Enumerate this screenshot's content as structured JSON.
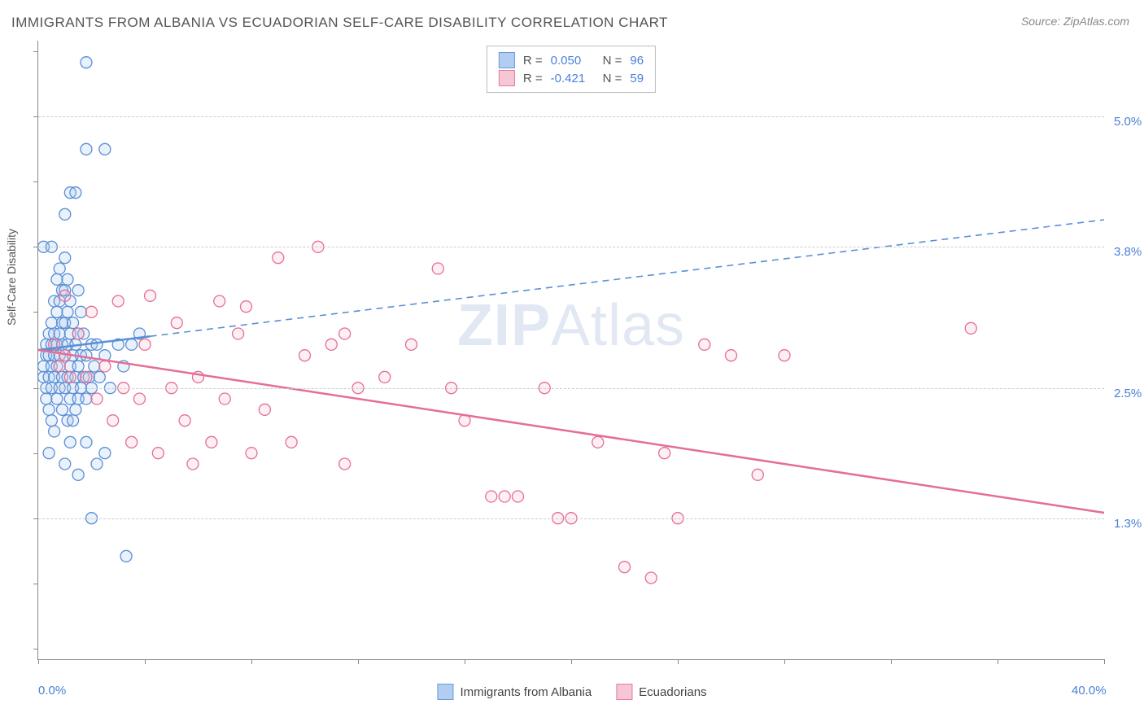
{
  "title": "IMMIGRANTS FROM ALBANIA VS ECUADORIAN SELF-CARE DISABILITY CORRELATION CHART",
  "source": "Source: ZipAtlas.com",
  "watermark": {
    "bold": "ZIP",
    "light": "Atlas"
  },
  "chart": {
    "type": "scatter-correlation",
    "ylabel": "Self-Care Disability",
    "xlim": [
      0.0,
      40.0
    ],
    "ylim": [
      0.0,
      5.7
    ],
    "x_axis_labels": [
      {
        "value": 0.0,
        "text": "0.0%"
      },
      {
        "value": 40.0,
        "text": "40.0%"
      }
    ],
    "y_gridlines": [
      {
        "value": 1.3,
        "text": "1.3%"
      },
      {
        "value": 2.5,
        "text": "2.5%"
      },
      {
        "value": 3.8,
        "text": "3.8%"
      },
      {
        "value": 5.0,
        "text": "5.0%"
      }
    ],
    "x_ticks": [
      0,
      4,
      8,
      12,
      16,
      20,
      24,
      28,
      32,
      36,
      40
    ],
    "y_ticks": [
      0.1,
      0.7,
      1.3,
      1.9,
      2.5,
      3.2,
      3.8,
      4.4,
      5.0,
      5.6
    ],
    "background_color": "#ffffff",
    "grid_color": "#cccccc",
    "marker_radius": 7,
    "marker_stroke_width": 1.3,
    "marker_fill_opacity": 0.25,
    "series": [
      {
        "name": "Immigrants from Albania",
        "color_stroke": "#5a8fd6",
        "color_fill": "#a9c9ef",
        "R": "0.050",
        "N": "96",
        "trend": {
          "x1": 0,
          "y1": 2.85,
          "x2": 40,
          "y2": 4.05,
          "solid_until_x": 4.2
        },
        "points": [
          [
            0.2,
            2.6
          ],
          [
            0.2,
            2.7
          ],
          [
            0.3,
            2.8
          ],
          [
            0.3,
            2.9
          ],
          [
            0.3,
            2.5
          ],
          [
            0.3,
            2.4
          ],
          [
            0.4,
            3.0
          ],
          [
            0.4,
            2.8
          ],
          [
            0.4,
            2.6
          ],
          [
            0.4,
            2.3
          ],
          [
            0.5,
            3.1
          ],
          [
            0.5,
            2.9
          ],
          [
            0.5,
            2.7
          ],
          [
            0.5,
            2.5
          ],
          [
            0.5,
            2.2
          ],
          [
            0.6,
            3.3
          ],
          [
            0.6,
            3.0
          ],
          [
            0.6,
            2.8
          ],
          [
            0.6,
            2.6
          ],
          [
            0.6,
            2.1
          ],
          [
            0.7,
            3.5
          ],
          [
            0.7,
            3.2
          ],
          [
            0.7,
            2.9
          ],
          [
            0.7,
            2.7
          ],
          [
            0.7,
            2.4
          ],
          [
            0.8,
            3.6
          ],
          [
            0.8,
            3.3
          ],
          [
            0.8,
            3.0
          ],
          [
            0.8,
            2.8
          ],
          [
            0.8,
            2.5
          ],
          [
            0.9,
            3.4
          ],
          [
            0.9,
            3.1
          ],
          [
            0.9,
            2.9
          ],
          [
            0.9,
            2.6
          ],
          [
            0.9,
            2.3
          ],
          [
            1.0,
            3.7
          ],
          [
            1.0,
            3.4
          ],
          [
            1.0,
            3.1
          ],
          [
            1.0,
            2.8
          ],
          [
            1.0,
            2.5
          ],
          [
            1.1,
            3.5
          ],
          [
            1.1,
            3.2
          ],
          [
            1.1,
            2.9
          ],
          [
            1.1,
            2.6
          ],
          [
            1.1,
            2.2
          ],
          [
            1.2,
            3.3
          ],
          [
            1.2,
            3.0
          ],
          [
            1.2,
            2.7
          ],
          [
            1.2,
            2.4
          ],
          [
            1.2,
            2.0
          ],
          [
            1.3,
            3.1
          ],
          [
            1.3,
            2.8
          ],
          [
            1.3,
            2.5
          ],
          [
            1.3,
            2.2
          ],
          [
            1.4,
            2.9
          ],
          [
            1.4,
            2.6
          ],
          [
            1.4,
            2.3
          ],
          [
            1.5,
            3.4
          ],
          [
            1.5,
            3.0
          ],
          [
            1.5,
            2.7
          ],
          [
            1.5,
            2.4
          ],
          [
            1.6,
            3.2
          ],
          [
            1.6,
            2.8
          ],
          [
            1.6,
            2.5
          ],
          [
            1.7,
            3.0
          ],
          [
            1.7,
            2.6
          ],
          [
            1.8,
            2.8
          ],
          [
            1.8,
            2.4
          ],
          [
            1.9,
            2.6
          ],
          [
            2.0,
            2.9
          ],
          [
            2.0,
            2.5
          ],
          [
            2.1,
            2.7
          ],
          [
            2.2,
            2.9
          ],
          [
            2.3,
            2.6
          ],
          [
            2.5,
            2.8
          ],
          [
            2.7,
            2.5
          ],
          [
            3.0,
            2.9
          ],
          [
            3.2,
            2.7
          ],
          [
            3.5,
            2.9
          ],
          [
            3.8,
            3.0
          ],
          [
            0.2,
            3.8
          ],
          [
            0.5,
            3.8
          ],
          [
            1.0,
            4.1
          ],
          [
            1.2,
            4.3
          ],
          [
            1.4,
            4.3
          ],
          [
            1.8,
            4.7
          ],
          [
            2.5,
            4.7
          ],
          [
            1.8,
            5.5
          ],
          [
            1.0,
            1.8
          ],
          [
            1.5,
            1.7
          ],
          [
            2.0,
            1.3
          ],
          [
            2.2,
            1.8
          ],
          [
            3.3,
            0.95
          ],
          [
            0.4,
            1.9
          ],
          [
            2.5,
            1.9
          ],
          [
            1.8,
            2.0
          ]
        ]
      },
      {
        "name": "Ecuadorians",
        "color_stroke": "#e36f94",
        "color_fill": "#f6c0d1",
        "R": "-0.421",
        "N": "59",
        "trend": {
          "x1": 0,
          "y1": 2.85,
          "x2": 40,
          "y2": 1.35,
          "solid_until_x": 40
        },
        "points": [
          [
            0.6,
            2.9
          ],
          [
            0.8,
            2.7
          ],
          [
            1.0,
            2.8
          ],
          [
            1.2,
            2.6
          ],
          [
            1.5,
            3.0
          ],
          [
            1.8,
            2.6
          ],
          [
            2.0,
            3.2
          ],
          [
            2.2,
            2.4
          ],
          [
            2.5,
            2.7
          ],
          [
            2.8,
            2.2
          ],
          [
            3.0,
            3.3
          ],
          [
            3.2,
            2.5
          ],
          [
            3.5,
            2.0
          ],
          [
            3.8,
            2.4
          ],
          [
            4.0,
            2.9
          ],
          [
            4.5,
            1.9
          ],
          [
            5.0,
            2.5
          ],
          [
            5.2,
            3.1
          ],
          [
            5.5,
            2.2
          ],
          [
            5.8,
            1.8
          ],
          [
            6.0,
            2.6
          ],
          [
            6.5,
            2.0
          ],
          [
            7.0,
            2.4
          ],
          [
            7.5,
            3.0
          ],
          [
            8.0,
            1.9
          ],
          [
            8.5,
            2.3
          ],
          [
            9.0,
            3.7
          ],
          [
            9.5,
            2.0
          ],
          [
            10.0,
            2.8
          ],
          [
            10.5,
            3.8
          ],
          [
            11.0,
            2.9
          ],
          [
            11.5,
            1.8
          ],
          [
            12.0,
            2.5
          ],
          [
            13.0,
            2.6
          ],
          [
            14.0,
            2.9
          ],
          [
            15.0,
            3.6
          ],
          [
            15.5,
            2.5
          ],
          [
            16.0,
            2.2
          ],
          [
            17.0,
            1.5
          ],
          [
            17.5,
            1.5
          ],
          [
            18.0,
            1.5
          ],
          [
            19.0,
            2.5
          ],
          [
            19.5,
            1.3
          ],
          [
            20.0,
            1.3
          ],
          [
            21.0,
            2.0
          ],
          [
            22.0,
            0.85
          ],
          [
            23.0,
            0.75
          ],
          [
            23.5,
            1.9
          ],
          [
            24.0,
            1.3
          ],
          [
            25.0,
            2.9
          ],
          [
            26.0,
            2.8
          ],
          [
            27.0,
            1.7
          ],
          [
            28.0,
            2.8
          ],
          [
            35.0,
            3.05
          ],
          [
            4.2,
            3.35
          ],
          [
            6.8,
            3.3
          ],
          [
            1.0,
            3.35
          ],
          [
            7.8,
            3.25
          ],
          [
            11.5,
            3.0
          ]
        ]
      }
    ],
    "legend_top": {
      "label_R": "R =",
      "label_N": "N ="
    },
    "legend_bottom": [
      {
        "series": 0
      },
      {
        "series": 1
      }
    ]
  }
}
